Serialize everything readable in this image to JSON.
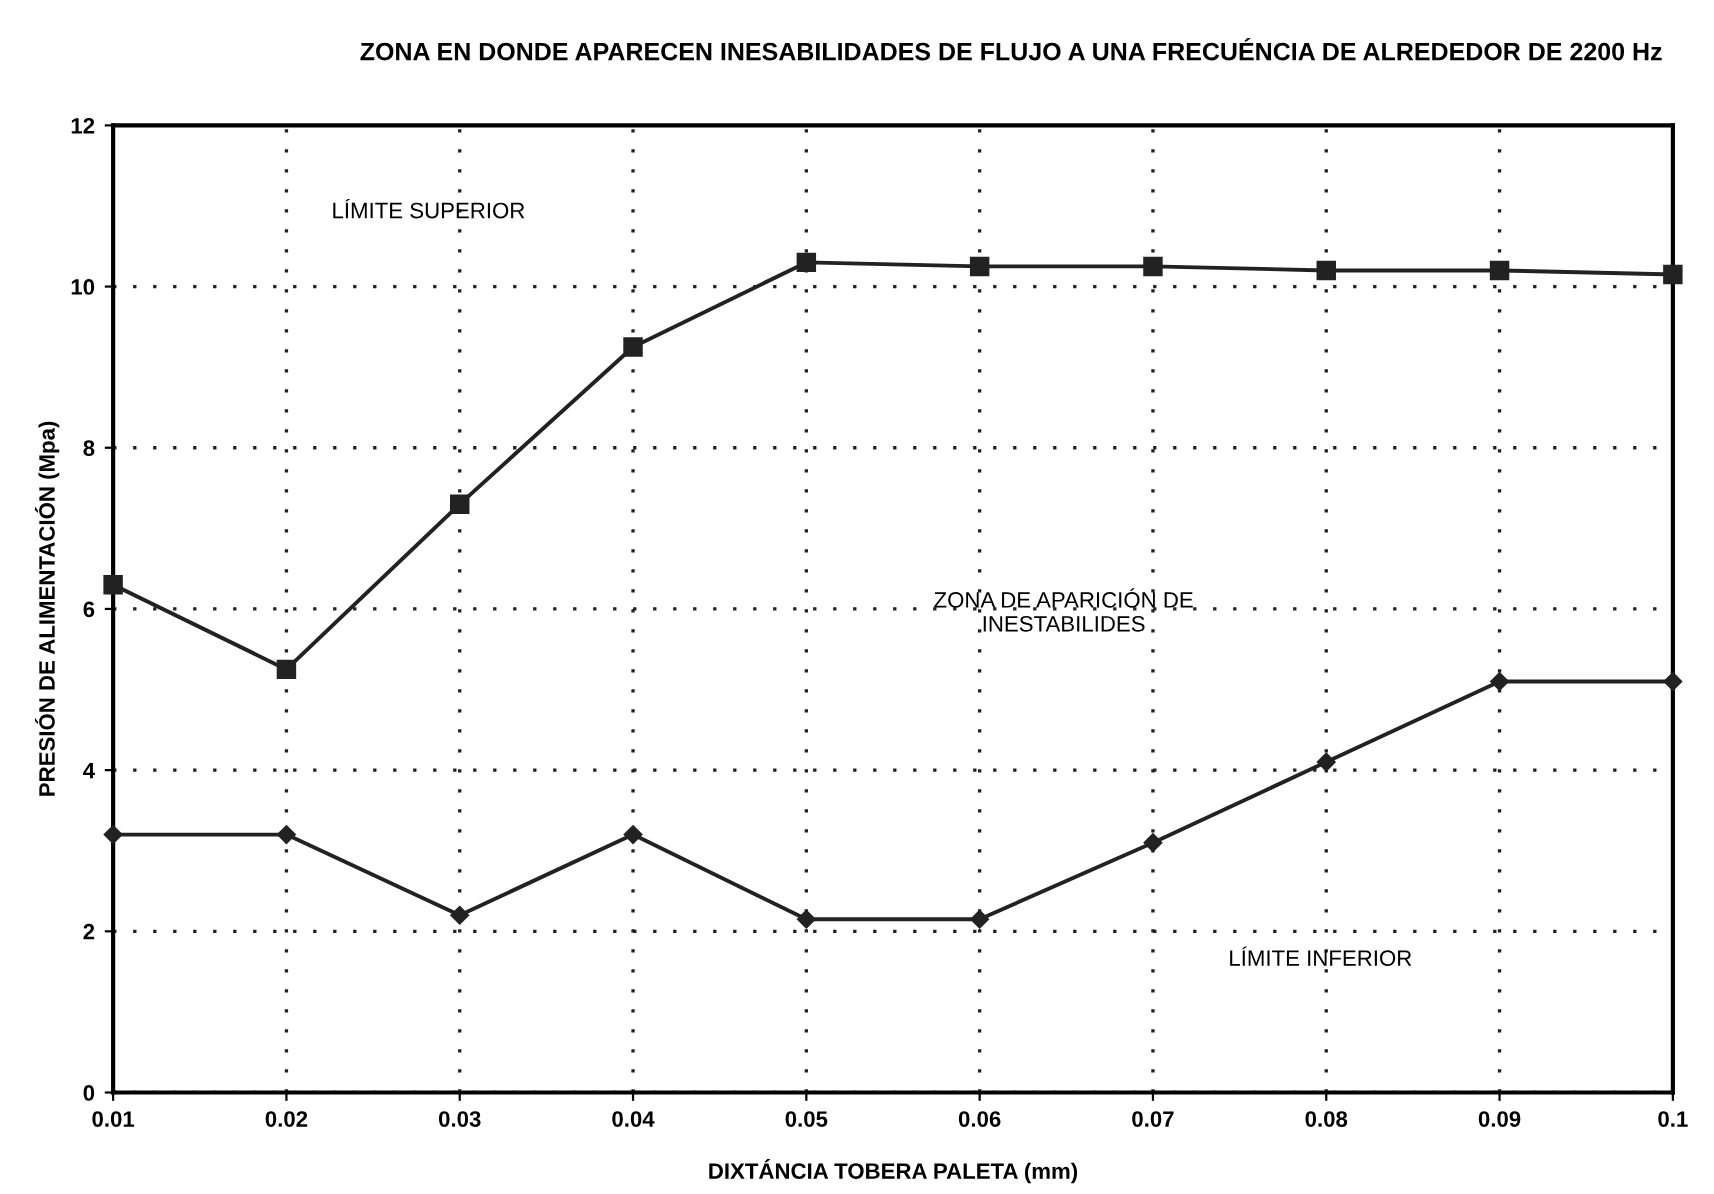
{
  "chart_data": {
    "type": "line",
    "title": "ZONA EN DONDE APARECEN INESABILIDADES DE FLUJO A UNA FRECUÉNCIA DE ALREDEDOR DE 2200 Hz",
    "xlabel": "DIXTÁNCIA TOBERA PALETA (mm)",
    "ylabel": "PRESIÓN DE ALIMENTACIÓN (Mpa)",
    "x": [
      0.01,
      0.02,
      0.03,
      0.04,
      0.05,
      0.06,
      0.07,
      0.08,
      0.09,
      0.1
    ],
    "series": [
      {
        "color": "#222222",
        "marker": "square",
        "values": [
          6.3,
          5.25,
          7.3,
          9.25,
          10.3,
          10.25,
          10.25,
          10.2,
          10.2,
          10.15
        ]
      },
      {
        "color": "#222222",
        "marker": "diamond",
        "values": [
          3.2,
          3.2,
          2.2,
          3.2,
          2.15,
          2.15,
          3.1,
          4.1,
          5.1,
          5.1
        ]
      }
    ],
    "annotations": [
      "LÍMITE SUPERIOR",
      "ZONA DE APARICIÓN DE\nINESTABILIDES",
      "LÍMITE INFERIOR"
    ],
    "xlim": [
      0.01,
      0.1
    ],
    "ylim": [
      0,
      12
    ],
    "xticks": [
      0.01,
      0.02,
      0.03,
      0.04,
      0.05,
      0.06,
      0.07,
      0.08,
      0.09,
      0.1
    ],
    "yticks": [
      0,
      2,
      4,
      6,
      8,
      10,
      12
    ],
    "grid": true,
    "line_style": "solid"
  }
}
